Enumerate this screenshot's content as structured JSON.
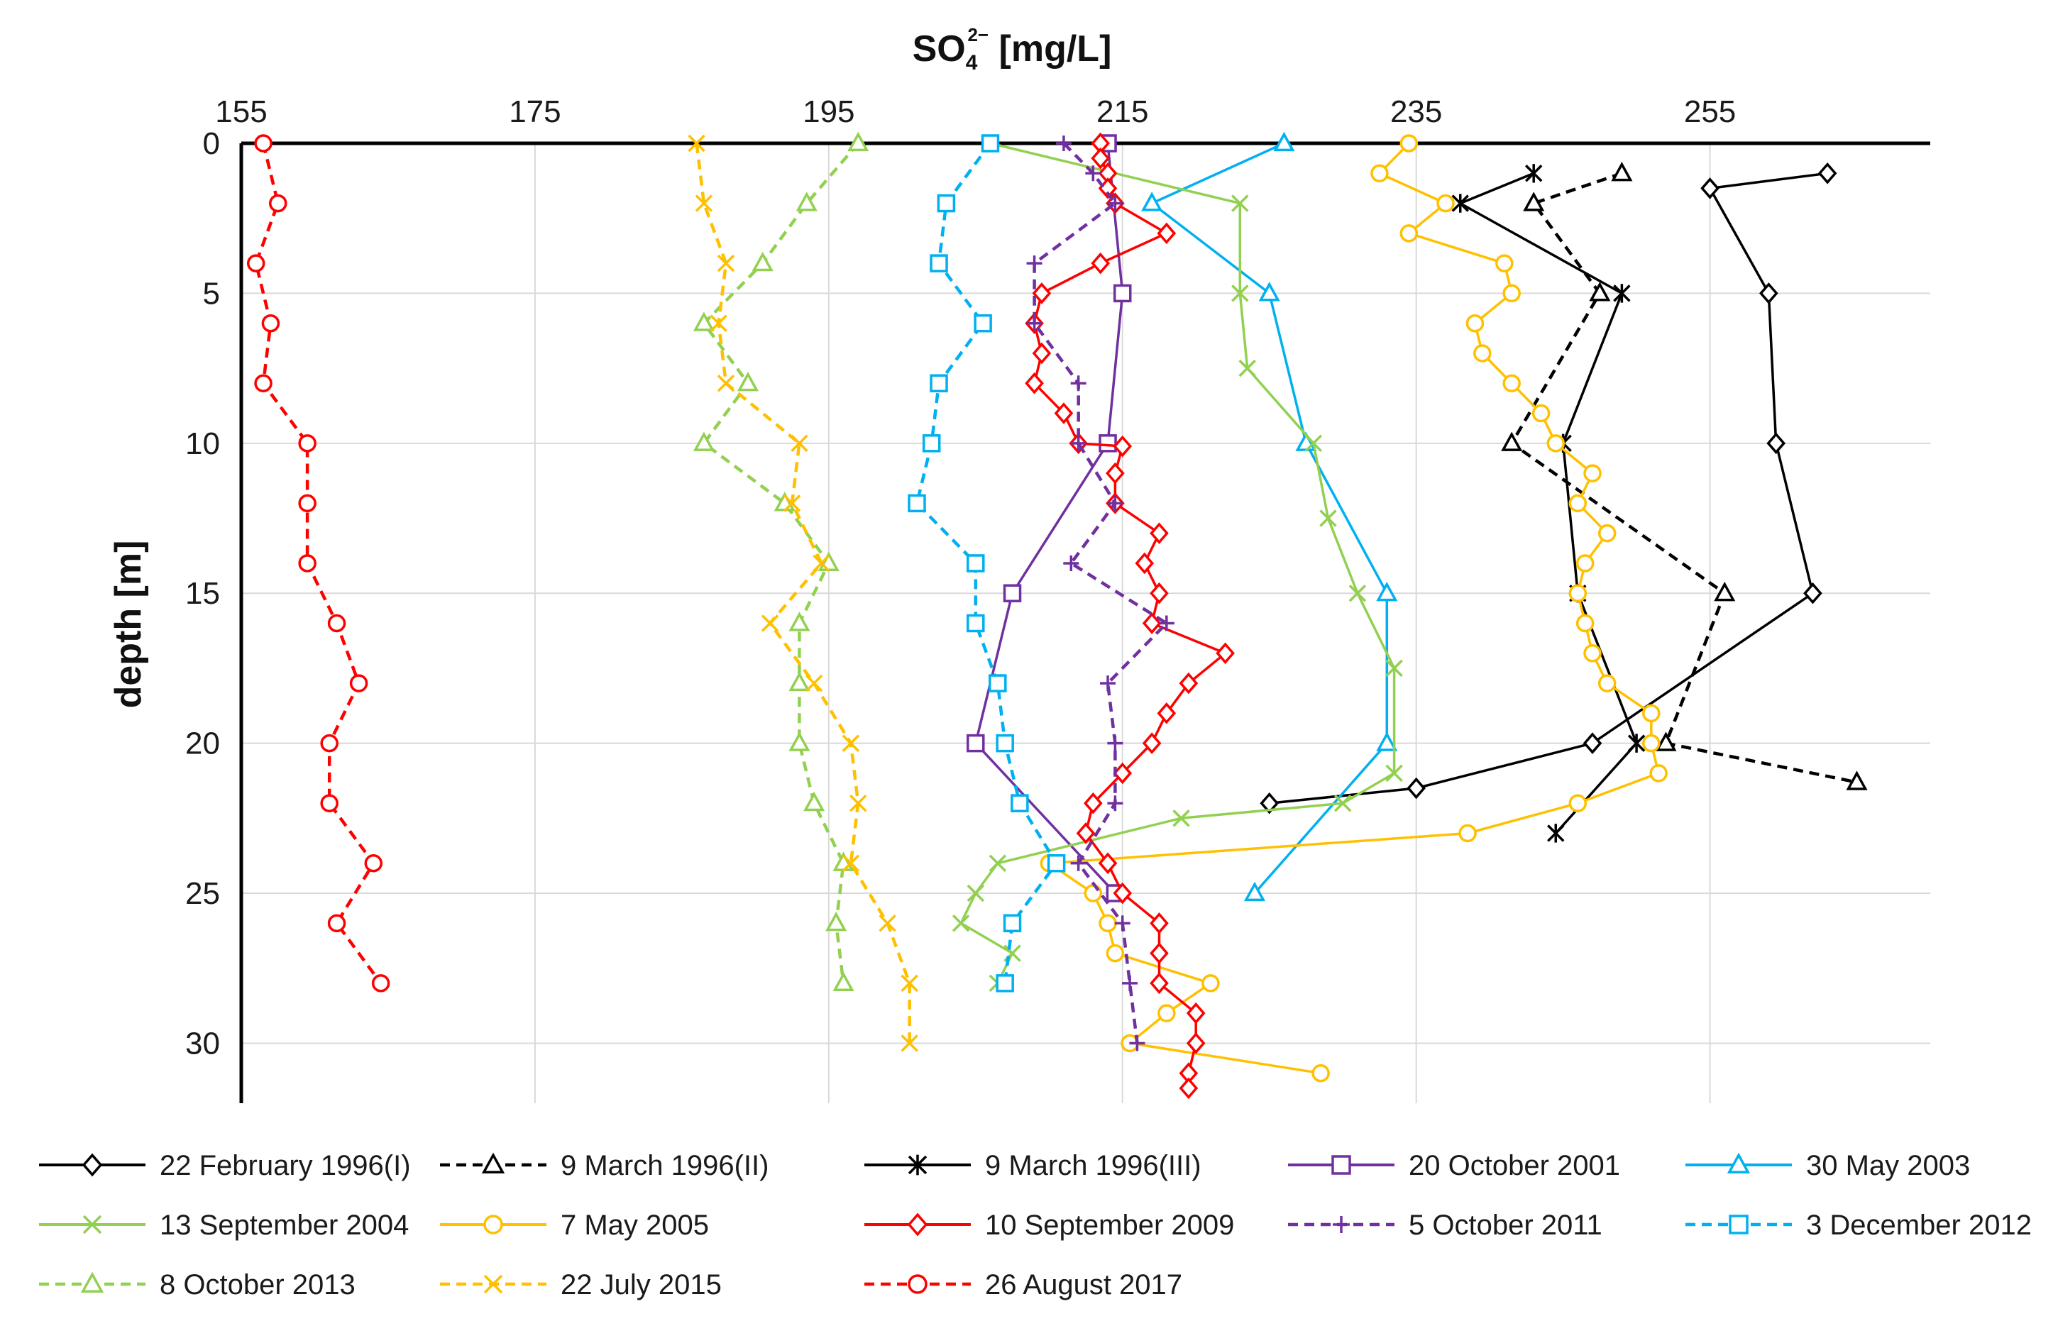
{
  "chart_data": {
    "type": "line",
    "title": "",
    "xlabel": "SO4 2− [mg/L]",
    "xlabel_main": "SO",
    "xlabel_sub": "4",
    "xlabel_sup": "2−",
    "xlabel_unit": " [mg/L]",
    "ylabel": "depth [m]",
    "xlim": [
      155,
      270
    ],
    "ylim": [
      32,
      0
    ],
    "x_ticks": [
      155,
      175,
      195,
      215,
      235,
      255
    ],
    "y_ticks": [
      0,
      5,
      10,
      15,
      20,
      25,
      30
    ],
    "legend_position": "bottom",
    "series": [
      {
        "name": "22 February 1996(I)",
        "color": "#000000",
        "dash": "solid",
        "marker": "diamond",
        "points": [
          [
            263,
            1
          ],
          [
            255,
            1.5
          ],
          [
            259,
            5
          ],
          [
            259.5,
            10
          ],
          [
            262,
            15
          ],
          [
            247,
            20
          ],
          [
            235,
            21.5
          ],
          [
            225,
            22
          ]
        ]
      },
      {
        "name": "9 March 1996(II)",
        "color": "#000000",
        "dash": "dash",
        "marker": "triangle",
        "points": [
          [
            249,
            1
          ],
          [
            243,
            2
          ],
          [
            247.5,
            5
          ],
          [
            241.5,
            10
          ],
          [
            256,
            15
          ],
          [
            252,
            20
          ],
          [
            265,
            21.3
          ]
        ]
      },
      {
        "name": "9 March 1996(III)",
        "color": "#000000",
        "dash": "solid",
        "marker": "star",
        "points": [
          [
            243,
            1
          ],
          [
            238,
            2
          ],
          [
            249,
            5
          ],
          [
            245,
            10
          ],
          [
            246,
            15
          ],
          [
            250,
            20
          ],
          [
            244.5,
            23
          ]
        ]
      },
      {
        "name": "20 October 2001",
        "color": "#7030a0",
        "dash": "solid",
        "marker": "square",
        "points": [
          [
            214,
            0
          ],
          [
            215,
            5
          ],
          [
            214,
            10
          ],
          [
            207.5,
            15
          ],
          [
            205,
            20
          ],
          [
            214.5,
            25
          ]
        ]
      },
      {
        "name": "30 May 2003",
        "color": "#00b0f0",
        "dash": "solid",
        "marker": "triangle",
        "points": [
          [
            226,
            0
          ],
          [
            217,
            2
          ],
          [
            225,
            5
          ],
          [
            227.5,
            10
          ],
          [
            233,
            15
          ],
          [
            233,
            20
          ],
          [
            224,
            25
          ]
        ]
      },
      {
        "name": "13 September 2004",
        "color": "#92d050",
        "dash": "solid",
        "marker": "x",
        "points": [
          [
            206,
            0
          ],
          [
            223,
            2
          ],
          [
            223,
            5
          ],
          [
            223.5,
            7.5
          ],
          [
            228,
            10
          ],
          [
            229,
            12.5
          ],
          [
            231,
            15
          ],
          [
            233.5,
            17.5
          ],
          [
            233.5,
            21
          ],
          [
            230,
            22
          ],
          [
            219,
            22.5
          ],
          [
            206.5,
            24
          ],
          [
            205,
            25
          ],
          [
            204,
            26
          ],
          [
            207.5,
            27
          ],
          [
            206.5,
            28
          ]
        ]
      },
      {
        "name": "7 May 2005",
        "color": "#ffc000",
        "dash": "solid",
        "marker": "circle",
        "points": [
          [
            234.5,
            0
          ],
          [
            232.5,
            1
          ],
          [
            237,
            2
          ],
          [
            234.5,
            3
          ],
          [
            241,
            4
          ],
          [
            241.5,
            5
          ],
          [
            239,
            6
          ],
          [
            239.5,
            7
          ],
          [
            241.5,
            8
          ],
          [
            243.5,
            9
          ],
          [
            244.5,
            10
          ],
          [
            247,
            11
          ],
          [
            246,
            12
          ],
          [
            248,
            13
          ],
          [
            246.5,
            14
          ],
          [
            246,
            15
          ],
          [
            246.5,
            16
          ],
          [
            247,
            17
          ],
          [
            248,
            18
          ],
          [
            251,
            19
          ],
          [
            251,
            20
          ],
          [
            251.5,
            21
          ],
          [
            246,
            22
          ],
          [
            238.5,
            23
          ],
          [
            210,
            24
          ],
          [
            213,
            25
          ],
          [
            214,
            26
          ],
          [
            214.5,
            27
          ],
          [
            221,
            28
          ],
          [
            218,
            29
          ],
          [
            215.5,
            30
          ],
          [
            228.5,
            31
          ]
        ]
      },
      {
        "name": "10 September 2009",
        "color": "#ff0000",
        "dash": "solid",
        "marker": "diamond",
        "points": [
          [
            213.5,
            0
          ],
          [
            213.5,
            0.5
          ],
          [
            214,
            1
          ],
          [
            214,
            1.5
          ],
          [
            214.5,
            2
          ],
          [
            218,
            3
          ],
          [
            213.5,
            4
          ],
          [
            209.5,
            5
          ],
          [
            209,
            6
          ],
          [
            209.5,
            7
          ],
          [
            209,
            8
          ],
          [
            211,
            9
          ],
          [
            212,
            10
          ],
          [
            215,
            10.1
          ],
          [
            214.5,
            11
          ],
          [
            214.5,
            12
          ],
          [
            217.5,
            13
          ],
          [
            216.5,
            14
          ],
          [
            217.5,
            15
          ],
          [
            217,
            16
          ],
          [
            222,
            17
          ],
          [
            219.5,
            18
          ],
          [
            218,
            19
          ],
          [
            217,
            20
          ],
          [
            215,
            21
          ],
          [
            213,
            22
          ],
          [
            212.5,
            23
          ],
          [
            214,
            24
          ],
          [
            215,
            25
          ],
          [
            217.5,
            26
          ],
          [
            217.5,
            27
          ],
          [
            217.5,
            28
          ],
          [
            220,
            29
          ],
          [
            220,
            30
          ],
          [
            219.5,
            31
          ],
          [
            219.5,
            31.5
          ]
        ]
      },
      {
        "name": "5 October 2011",
        "color": "#7030a0",
        "dash": "dash",
        "marker": "plus",
        "points": [
          [
            211,
            0
          ],
          [
            213,
            1
          ],
          [
            214.5,
            2
          ],
          [
            209,
            4
          ],
          [
            209,
            6
          ],
          [
            212,
            8
          ],
          [
            212,
            10
          ],
          [
            214.5,
            12
          ],
          [
            211.5,
            14
          ],
          [
            218,
            16
          ],
          [
            214,
            18
          ],
          [
            214.5,
            20
          ],
          [
            214.5,
            22
          ],
          [
            212,
            24
          ],
          [
            215,
            26
          ],
          [
            215.5,
            28
          ],
          [
            216,
            30
          ]
        ]
      },
      {
        "name": "3 December 2012",
        "color": "#00b0f0",
        "dash": "dash",
        "marker": "square",
        "points": [
          [
            206,
            0
          ],
          [
            203,
            2
          ],
          [
            202.5,
            4
          ],
          [
            205.5,
            6
          ],
          [
            202.5,
            8
          ],
          [
            202,
            10
          ],
          [
            201,
            12
          ],
          [
            205,
            14
          ],
          [
            205,
            16
          ],
          [
            206.5,
            18
          ],
          [
            207,
            20
          ],
          [
            208,
            22
          ],
          [
            210.5,
            24
          ],
          [
            207.5,
            26
          ],
          [
            207,
            28
          ]
        ]
      },
      {
        "name": "8 October 2013",
        "color": "#92d050",
        "dash": "dash",
        "marker": "triangle",
        "points": [
          [
            197,
            0
          ],
          [
            193.5,
            2
          ],
          [
            190.5,
            4
          ],
          [
            186.5,
            6
          ],
          [
            189.5,
            8
          ],
          [
            186.5,
            10
          ],
          [
            192,
            12
          ],
          [
            195,
            14
          ],
          [
            193,
            16
          ],
          [
            193,
            18
          ],
          [
            193,
            20
          ],
          [
            194,
            22
          ],
          [
            196,
            24
          ],
          [
            195.5,
            26
          ],
          [
            196,
            28
          ]
        ]
      },
      {
        "name": "22 July 2015",
        "color": "#ffc000",
        "dash": "dash",
        "marker": "x",
        "points": [
          [
            186,
            0
          ],
          [
            186.5,
            2
          ],
          [
            188,
            4
          ],
          [
            187.5,
            6
          ],
          [
            188,
            8
          ],
          [
            193,
            10
          ],
          [
            192.5,
            12
          ],
          [
            194.5,
            14
          ],
          [
            191,
            16
          ],
          [
            194,
            18
          ],
          [
            196.5,
            20
          ],
          [
            197,
            22
          ],
          [
            196.5,
            24
          ],
          [
            199,
            26
          ],
          [
            200.5,
            28
          ],
          [
            200.5,
            30
          ]
        ]
      },
      {
        "name": "26 August 2017",
        "color": "#ff0000",
        "dash": "dash",
        "marker": "circle",
        "points": [
          [
            156.5,
            0
          ],
          [
            157.5,
            2
          ],
          [
            156,
            4
          ],
          [
            157,
            6
          ],
          [
            156.5,
            8
          ],
          [
            159.5,
            10
          ],
          [
            159.5,
            12
          ],
          [
            159.5,
            14
          ],
          [
            161.5,
            16
          ],
          [
            163,
            18
          ],
          [
            161,
            20
          ],
          [
            161,
            22
          ],
          [
            164,
            24
          ],
          [
            161.5,
            26
          ],
          [
            164.5,
            28
          ]
        ]
      }
    ]
  }
}
